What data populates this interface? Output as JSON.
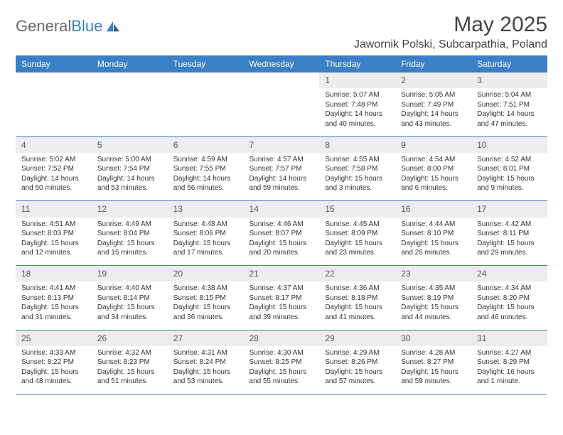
{
  "logo": {
    "text1": "General",
    "text2": "Blue"
  },
  "title": "May 2025",
  "location": "Jawornik Polski, Subcarpathia, Poland",
  "colors": {
    "header_bg": "#3b7fc4",
    "header_text": "#ffffff",
    "daynum_bg": "#ededed",
    "row_border": "#3b7fc4",
    "logo_gray": "#6a6a6a",
    "logo_blue": "#3b7fc4"
  },
  "weekdays": [
    "Sunday",
    "Monday",
    "Tuesday",
    "Wednesday",
    "Thursday",
    "Friday",
    "Saturday"
  ],
  "weeks": [
    [
      null,
      null,
      null,
      null,
      {
        "n": "1",
        "sr": "Sunrise: 5:07 AM",
        "ss": "Sunset: 7:48 PM",
        "dl": "Daylight: 14 hours and 40 minutes."
      },
      {
        "n": "2",
        "sr": "Sunrise: 5:05 AM",
        "ss": "Sunset: 7:49 PM",
        "dl": "Daylight: 14 hours and 43 minutes."
      },
      {
        "n": "3",
        "sr": "Sunrise: 5:04 AM",
        "ss": "Sunset: 7:51 PM",
        "dl": "Daylight: 14 hours and 47 minutes."
      }
    ],
    [
      {
        "n": "4",
        "sr": "Sunrise: 5:02 AM",
        "ss": "Sunset: 7:52 PM",
        "dl": "Daylight: 14 hours and 50 minutes."
      },
      {
        "n": "5",
        "sr": "Sunrise: 5:00 AM",
        "ss": "Sunset: 7:54 PM",
        "dl": "Daylight: 14 hours and 53 minutes."
      },
      {
        "n": "6",
        "sr": "Sunrise: 4:59 AM",
        "ss": "Sunset: 7:55 PM",
        "dl": "Daylight: 14 hours and 56 minutes."
      },
      {
        "n": "7",
        "sr": "Sunrise: 4:57 AM",
        "ss": "Sunset: 7:57 PM",
        "dl": "Daylight: 14 hours and 59 minutes."
      },
      {
        "n": "8",
        "sr": "Sunrise: 4:55 AM",
        "ss": "Sunset: 7:58 PM",
        "dl": "Daylight: 15 hours and 3 minutes."
      },
      {
        "n": "9",
        "sr": "Sunrise: 4:54 AM",
        "ss": "Sunset: 8:00 PM",
        "dl": "Daylight: 15 hours and 6 minutes."
      },
      {
        "n": "10",
        "sr": "Sunrise: 4:52 AM",
        "ss": "Sunset: 8:01 PM",
        "dl": "Daylight: 15 hours and 9 minutes."
      }
    ],
    [
      {
        "n": "11",
        "sr": "Sunrise: 4:51 AM",
        "ss": "Sunset: 8:03 PM",
        "dl": "Daylight: 15 hours and 12 minutes."
      },
      {
        "n": "12",
        "sr": "Sunrise: 4:49 AM",
        "ss": "Sunset: 8:04 PM",
        "dl": "Daylight: 15 hours and 15 minutes."
      },
      {
        "n": "13",
        "sr": "Sunrise: 4:48 AM",
        "ss": "Sunset: 8:06 PM",
        "dl": "Daylight: 15 hours and 17 minutes."
      },
      {
        "n": "14",
        "sr": "Sunrise: 4:46 AM",
        "ss": "Sunset: 8:07 PM",
        "dl": "Daylight: 15 hours and 20 minutes."
      },
      {
        "n": "15",
        "sr": "Sunrise: 4:45 AM",
        "ss": "Sunset: 8:09 PM",
        "dl": "Daylight: 15 hours and 23 minutes."
      },
      {
        "n": "16",
        "sr": "Sunrise: 4:44 AM",
        "ss": "Sunset: 8:10 PM",
        "dl": "Daylight: 15 hours and 26 minutes."
      },
      {
        "n": "17",
        "sr": "Sunrise: 4:42 AM",
        "ss": "Sunset: 8:11 PM",
        "dl": "Daylight: 15 hours and 29 minutes."
      }
    ],
    [
      {
        "n": "18",
        "sr": "Sunrise: 4:41 AM",
        "ss": "Sunset: 8:13 PM",
        "dl": "Daylight: 15 hours and 31 minutes."
      },
      {
        "n": "19",
        "sr": "Sunrise: 4:40 AM",
        "ss": "Sunset: 8:14 PM",
        "dl": "Daylight: 15 hours and 34 minutes."
      },
      {
        "n": "20",
        "sr": "Sunrise: 4:38 AM",
        "ss": "Sunset: 8:15 PM",
        "dl": "Daylight: 15 hours and 36 minutes."
      },
      {
        "n": "21",
        "sr": "Sunrise: 4:37 AM",
        "ss": "Sunset: 8:17 PM",
        "dl": "Daylight: 15 hours and 39 minutes."
      },
      {
        "n": "22",
        "sr": "Sunrise: 4:36 AM",
        "ss": "Sunset: 8:18 PM",
        "dl": "Daylight: 15 hours and 41 minutes."
      },
      {
        "n": "23",
        "sr": "Sunrise: 4:35 AM",
        "ss": "Sunset: 8:19 PM",
        "dl": "Daylight: 15 hours and 44 minutes."
      },
      {
        "n": "24",
        "sr": "Sunrise: 4:34 AM",
        "ss": "Sunset: 8:20 PM",
        "dl": "Daylight: 15 hours and 46 minutes."
      }
    ],
    [
      {
        "n": "25",
        "sr": "Sunrise: 4:33 AM",
        "ss": "Sunset: 8:22 PM",
        "dl": "Daylight: 15 hours and 48 minutes."
      },
      {
        "n": "26",
        "sr": "Sunrise: 4:32 AM",
        "ss": "Sunset: 8:23 PM",
        "dl": "Daylight: 15 hours and 51 minutes."
      },
      {
        "n": "27",
        "sr": "Sunrise: 4:31 AM",
        "ss": "Sunset: 8:24 PM",
        "dl": "Daylight: 15 hours and 53 minutes."
      },
      {
        "n": "28",
        "sr": "Sunrise: 4:30 AM",
        "ss": "Sunset: 8:25 PM",
        "dl": "Daylight: 15 hours and 55 minutes."
      },
      {
        "n": "29",
        "sr": "Sunrise: 4:29 AM",
        "ss": "Sunset: 8:26 PM",
        "dl": "Daylight: 15 hours and 57 minutes."
      },
      {
        "n": "30",
        "sr": "Sunrise: 4:28 AM",
        "ss": "Sunset: 8:27 PM",
        "dl": "Daylight: 15 hours and 59 minutes."
      },
      {
        "n": "31",
        "sr": "Sunrise: 4:27 AM",
        "ss": "Sunset: 8:29 PM",
        "dl": "Daylight: 16 hours and 1 minute."
      }
    ]
  ]
}
